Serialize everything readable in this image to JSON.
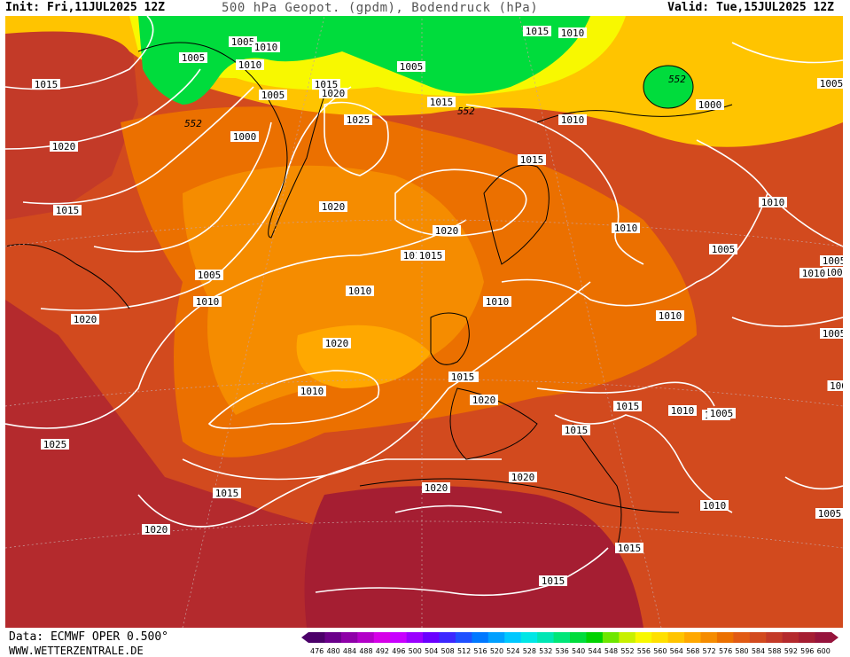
{
  "header": {
    "init": "Init: Fri,11JUL2025 12Z",
    "title": "500 hPa Geopot. (gpdm), Bodendruck (hPa)",
    "valid": "Valid: Tue,15JUL2025 12Z"
  },
  "footer": {
    "data_source": "Data: ECMWF OPER 0.500°",
    "website": "WWW.WETTERZENTRALE.DE"
  },
  "colorbar": {
    "values": [
      "476",
      "480",
      "484",
      "488",
      "492",
      "496",
      "500",
      "504",
      "508",
      "512",
      "516",
      "520",
      "524",
      "528",
      "532",
      "536",
      "540",
      "544",
      "548",
      "552",
      "556",
      "560",
      "564",
      "568",
      "572",
      "576",
      "580",
      "584",
      "588",
      "592",
      "596",
      "600"
    ],
    "colors": [
      "#4b0069",
      "#6a008a",
      "#8e00a8",
      "#b200c8",
      "#d600e8",
      "#c800ff",
      "#9a00ff",
      "#6a00ff",
      "#3c28ff",
      "#1e50ff",
      "#0078ff",
      "#00a0ff",
      "#00c8ff",
      "#00e6e6",
      "#00e6b4",
      "#00e678",
      "#00dc3c",
      "#00d200",
      "#6ee600",
      "#c8f000",
      "#f8f800",
      "#ffe000",
      "#ffc400",
      "#ffa800",
      "#f58c00",
      "#eb7000",
      "#e15a14",
      "#d24a1e",
      "#c33a28",
      "#b42a2d",
      "#a51e32",
      "#96143c"
    ]
  },
  "map": {
    "colors": {
      "ocean_light": "#f58c00",
      "land_hot": "#b42a2d",
      "sahara": "#a51e32",
      "arctic_green": "#00dc3c",
      "yellow_band": "#f8f800",
      "isobar": "#ffffff",
      "coast": "#000000"
    },
    "isobar_labels": [
      "1015",
      "1005",
      "1010",
      "1005",
      "1010",
      "1015",
      "1020",
      "1020",
      "1025",
      "1010",
      "1015",
      "1020",
      "1020",
      "1000",
      "1015",
      "1010",
      "1020",
      "1010",
      "1010",
      "1015",
      "1005",
      "1000",
      "1010",
      "1015",
      "1010",
      "1005",
      "1010",
      "1015",
      "1020",
      "1010",
      "1015",
      "1015",
      "1005",
      "1010",
      "1005",
      "1005",
      "1005",
      "1015",
      "1020",
      "1025",
      "1020",
      "1015",
      "1020",
      "1015",
      "1020",
      "1015",
      "1010",
      "1010",
      "1005",
      "1005",
      "1015",
      "1010",
      "100",
      "552",
      "552",
      "552",
      "1005",
      "1010",
      "1015",
      "1005"
    ]
  }
}
